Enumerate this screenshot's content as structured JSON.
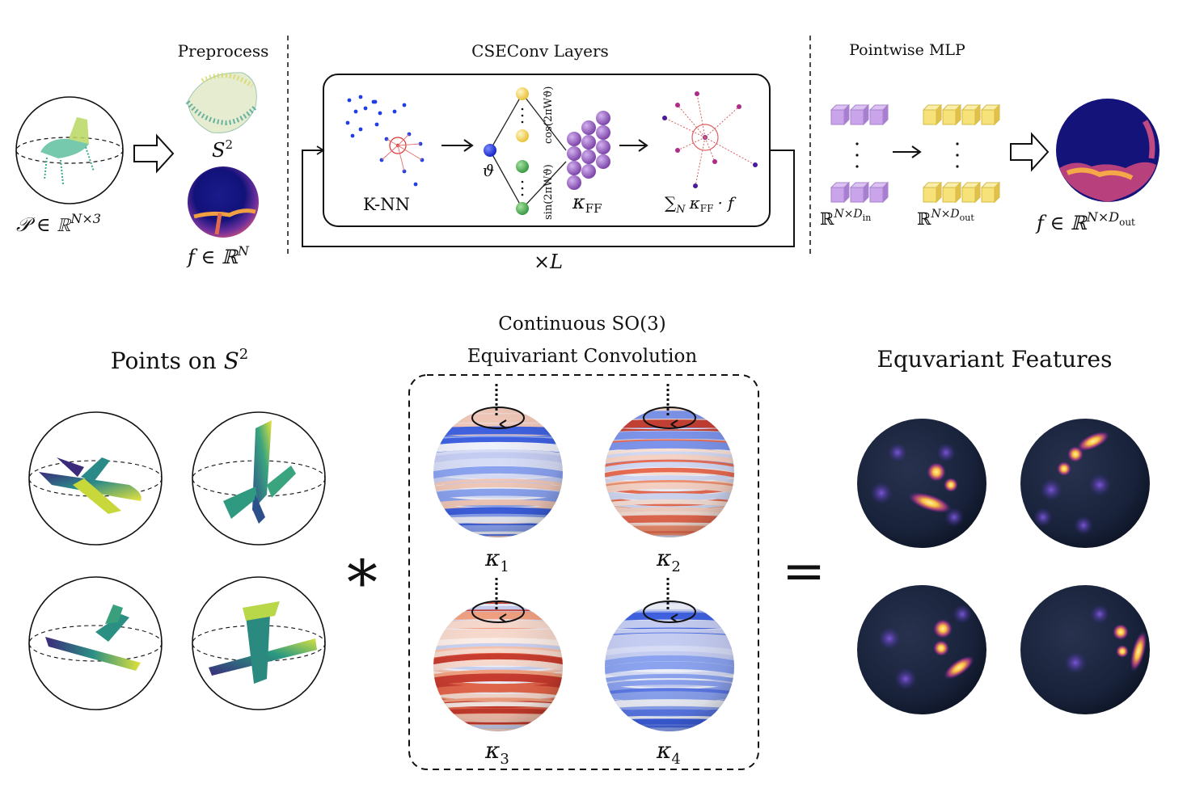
{
  "top": {
    "preprocess_title": "Preprocess",
    "cseconv_title": "CSEConv Layers",
    "mlp_title": "Pointwise MLP",
    "input_label": "𝒫 ∈ ℝ",
    "input_sup": "N×3",
    "s2_label": "S",
    "s2_sup": "2",
    "f_label": "f ∈ ℝ",
    "f_sup": "N",
    "knn_label": "K-NN",
    "theta_label": "ϑ",
    "ff_sin_label": "sin(2πWϑ)",
    "ff_cos_label": "cos(2πWϑ)",
    "kappa_ff_label": "κ",
    "kappa_ff_sub": "FF",
    "sum_label": "∑",
    "sum_sub": "N",
    "sum_rest": "κ",
    "sum_rest_sub": "FF",
    "sum_tail": "· f",
    "repeat_label": "×L",
    "mlp_in_label": "ℝ",
    "mlp_in_sup": "N×D",
    "mlp_in_sub": "in",
    "mlp_out_label": "ℝ",
    "mlp_out_sup": "N×D",
    "mlp_out_sub": "out",
    "output_label": "f ∈ ℝ",
    "output_sup": "N×D",
    "output_sub": "out"
  },
  "bottom": {
    "points_title": "Points on ",
    "points_title_math": "S",
    "points_title_sup": "2",
    "conv_title_line1": "Continuous SO(3)",
    "conv_title_line2": "Equivariant Convolution",
    "features_title": "Equvariant Features",
    "star_symbol": "∗",
    "equals_symbol": "=",
    "kernels": [
      {
        "label": "κ",
        "sub": "1",
        "tone": "blue"
      },
      {
        "label": "κ",
        "sub": "2",
        "tone": "mixed"
      },
      {
        "label": "κ",
        "sub": "3",
        "tone": "red"
      },
      {
        "label": "κ",
        "sub": "4",
        "tone": "blue"
      }
    ]
  },
  "colors": {
    "point_cloud_blue": "#1f3fe0",
    "knn_red": "#e03030",
    "ff_yellow": "#f2d25a",
    "ff_green": "#4caf50",
    "ff_purple": "#8e59b8",
    "mlp_purple": "#c9a4ea",
    "mlp_yellow": "#f7e27a",
    "feature_dark": "#18233a",
    "heat_bright": "#f9d648"
  }
}
